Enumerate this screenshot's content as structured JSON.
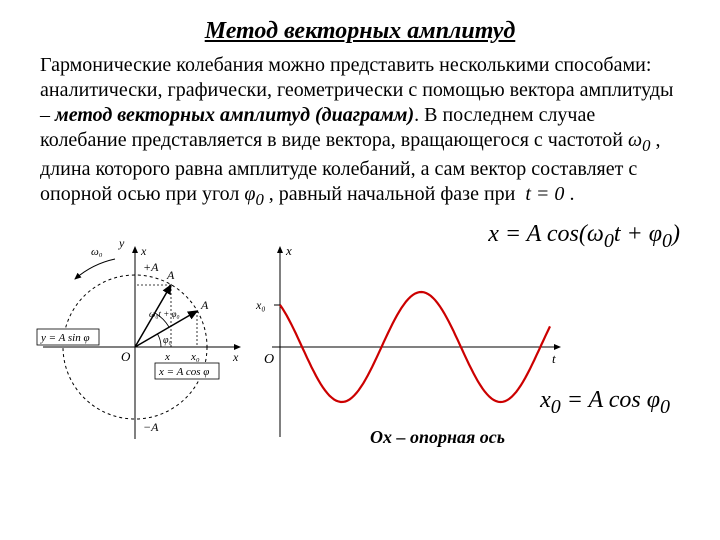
{
  "title": "Метод векторных амплитуд",
  "paragraph": {
    "p1": "Гармонические колебания можно представить несколькими способами: аналитически, графически, геометрически с помощью вектора амплитуды – ",
    "p2": "метод векторных амплитуд (диаграмм)",
    "p3": ". В последнем случае колебание представляется в виде вектора, вращающегося с частотой ",
    "omega0": "ω",
    "omega0_sub": "0",
    "p4": " , длина которого равна амплитуде колебаний, а сам вектор составляет с опорной осью при угол ",
    "phi0": "φ",
    "phi0_sub": "0",
    "p5": " , равный начальной фазе при ",
    "t_eq_0": "t = 0",
    "p6": " ."
  },
  "formulas": {
    "f1": "x = A cos(ω₀t + φ₀)",
    "f2": "x₀ = A cos φ₀"
  },
  "caption": {
    "ox_label": "Ox",
    "ox_text": " – опорная ось"
  },
  "diagram": {
    "circle": {
      "labels": {
        "y_axis": "y",
        "x_axis_top": "x",
        "x_axis_right": "x",
        "origin": "O",
        "plus_A": "+A",
        "minus_A": "−A",
        "A_vec1": "A",
        "A_vec2": "A",
        "omega0": "ω₀",
        "omega0t_phi": "ω₀t + φ₀",
        "phi0": "φ₀",
        "x_mark": "x",
        "x0_mark": "x₀",
        "y_eq": "y = A sin φ",
        "x_eq": "x = A cos φ"
      }
    },
    "wave": {
      "labels": {
        "x_axis_top": "x",
        "t_axis": "t",
        "origin": "O",
        "x0": "x₀"
      },
      "colors": {
        "curve": "#cc0000",
        "axes": "#000000"
      },
      "amplitude": 55,
      "phase_deg": 40,
      "periods": 1.7
    }
  }
}
